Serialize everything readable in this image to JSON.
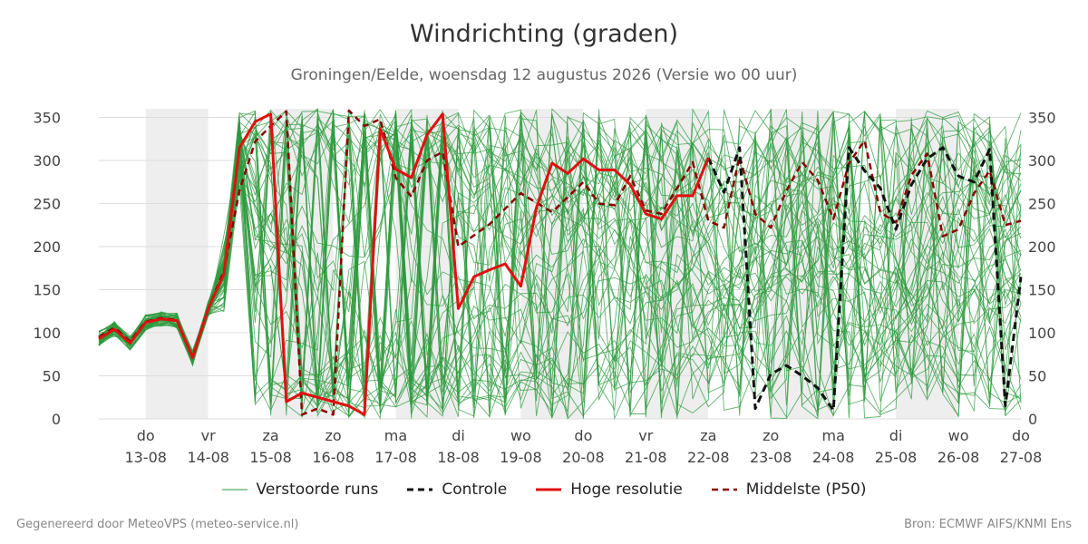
{
  "title": "Windrichting (graden)",
  "subtitle": "Groningen/Eelde, woensdag 12 augustus 2026 (Versie wo 00 uur)",
  "footer": {
    "left": "Gegenereerd door MeteoVPS (meteo-service.nl)",
    "right": "Bron: ECMWF AIFS/KNMI Ens"
  },
  "chart_data": {
    "type": "line",
    "title": "Windrichting (graden)",
    "x_unit": "days since 13-08 00:00",
    "xlim": [
      -0.75,
      14.0
    ],
    "ylim": [
      0,
      360
    ],
    "yticks": [
      0,
      50,
      100,
      150,
      200,
      250,
      300,
      350
    ],
    "grid": true,
    "legend_position": "bottom",
    "xticks": [
      {
        "day": "do",
        "date": "13-08"
      },
      {
        "day": "vr",
        "date": "14-08"
      },
      {
        "day": "za",
        "date": "15-08"
      },
      {
        "day": "zo",
        "date": "16-08"
      },
      {
        "day": "ma",
        "date": "17-08"
      },
      {
        "day": "di",
        "date": "18-08"
      },
      {
        "day": "wo",
        "date": "19-08"
      },
      {
        "day": "do",
        "date": "20-08"
      },
      {
        "day": "vr",
        "date": "21-08"
      },
      {
        "day": "za",
        "date": "22-08"
      },
      {
        "day": "zo",
        "date": "23-08"
      },
      {
        "day": "ma",
        "date": "24-08"
      },
      {
        "day": "di",
        "date": "25-08"
      },
      {
        "day": "wo",
        "date": "26-08"
      },
      {
        "day": "do",
        "date": "27-08"
      }
    ],
    "shaded_days": [
      0,
      2,
      4,
      6,
      8,
      10,
      12
    ],
    "colors": {
      "perturbed": "#2e9a3e",
      "control": "#111111",
      "hires": "#e01010",
      "median": "#8b0000",
      "shade": "#eeeeee",
      "grid": "#dddddd"
    },
    "legend": [
      {
        "label": "Verstoorde runs",
        "style": "perturbed"
      },
      {
        "label": "Controle",
        "style": "control"
      },
      {
        "label": "Hoge resolutie",
        "style": "hires"
      },
      {
        "label": "Middelste (P50)",
        "style": "median"
      }
    ],
    "series": [
      {
        "name": "Hoge resolutie",
        "style": "hires",
        "x": [
          -0.75,
          -0.5,
          -0.25,
          0,
          0.25,
          0.5,
          0.75,
          1.0,
          1.25,
          1.5,
          1.75,
          2.0,
          2.25,
          2.5,
          2.75,
          3.0,
          3.25,
          3.5,
          3.75,
          4.0,
          4.25,
          4.5,
          4.75,
          5.0,
          5.25,
          5.5,
          5.75,
          6.0,
          6.25,
          6.5,
          6.75,
          7.0,
          7.25,
          7.5,
          7.75,
          8.0,
          8.25,
          8.5,
          8.75,
          9.0
        ],
        "y": [
          93,
          104,
          88,
          112,
          116,
          114,
          71,
          128,
          168,
          315,
          345,
          354,
          20,
          30,
          25,
          20,
          15,
          5,
          337,
          290,
          280,
          330,
          354,
          128,
          165,
          173,
          180,
          154,
          245,
          297,
          285,
          302,
          289,
          289,
          272,
          238,
          232,
          259,
          259,
          303
        ]
      },
      {
        "name": "Middelste (P50)",
        "style": "median",
        "x": [
          -0.75,
          -0.5,
          -0.25,
          0,
          0.25,
          0.5,
          0.75,
          1.0,
          1.25,
          1.5,
          1.75,
          2.0,
          2.25,
          2.5,
          2.75,
          3.0,
          3.25,
          3.5,
          3.75,
          4.0,
          4.25,
          4.5,
          4.75,
          5.0,
          5.5,
          6.0,
          6.5,
          7.0,
          7.25,
          7.5,
          7.75,
          8.0,
          8.25,
          8.5,
          8.75,
          9.0,
          9.25,
          9.5,
          9.75,
          10.0,
          10.25,
          10.5,
          10.75,
          11.0,
          11.25,
          11.5,
          11.75,
          12.0,
          12.25,
          12.5,
          12.75,
          13.0,
          13.25,
          13.5,
          13.75,
          14.0
        ],
        "y": [
          95,
          106,
          90,
          113,
          117,
          115,
          72,
          128,
          172,
          265,
          322,
          340,
          357,
          5,
          12,
          5,
          358,
          340,
          348,
          280,
          258,
          300,
          310,
          200,
          226,
          262,
          240,
          275,
          250,
          248,
          282,
          242,
          238,
          268,
          298,
          230,
          222,
          305,
          238,
          222,
          265,
          298,
          277,
          232,
          297,
          323,
          240,
          228,
          283,
          308,
          212,
          220,
          262,
          288,
          225,
          230
        ]
      },
      {
        "name": "Controle",
        "style": "control",
        "x": [
          9.0,
          9.25,
          9.5,
          9.75,
          10.0,
          10.25,
          10.5,
          10.75,
          11.0,
          11.25,
          11.5,
          11.75,
          12.0,
          12.25,
          12.5,
          12.75,
          13.0,
          13.25,
          13.5,
          13.75,
          14.0
        ],
        "y": [
          303,
          263,
          315,
          12,
          52,
          62,
          50,
          36,
          10,
          315,
          288,
          268,
          220,
          272,
          302,
          315,
          282,
          275,
          313,
          15,
          165
        ]
      }
    ],
    "perturbed_runs": 50
  }
}
